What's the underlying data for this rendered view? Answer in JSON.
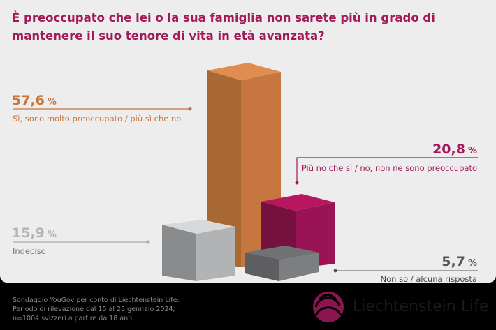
{
  "title": "È preoccupato che lei o la sua famiglia non sarete più in grado di mantenere il suo tenore di vita in età avanzata?",
  "chart_data": {
    "type": "bar",
    "style": "3d",
    "unit": "%",
    "categories": [
      "Sì, sono molto preoccupato / più sì che no",
      "Più no che sì / no, non ne sono preoccupato",
      "Indeciso",
      "Non so / alcuna risposta"
    ],
    "values": [
      57.6,
      20.8,
      15.9,
      5.7
    ],
    "value_labels": [
      "57,6",
      "20,8",
      "15,9",
      "5,7"
    ],
    "colors": [
      "#c8743d",
      "#a3195b",
      "#b0b0b0",
      "#777777"
    ]
  },
  "footer": [
    "Sondaggio YouGov per conto di Liechtenstein Life:",
    "Periodo di rilevazione dal 15 al 25 gennaio 2024;",
    "n=1004 svizzeri a partire da 18 anni"
  ],
  "logo": "Liechtenstein Life"
}
